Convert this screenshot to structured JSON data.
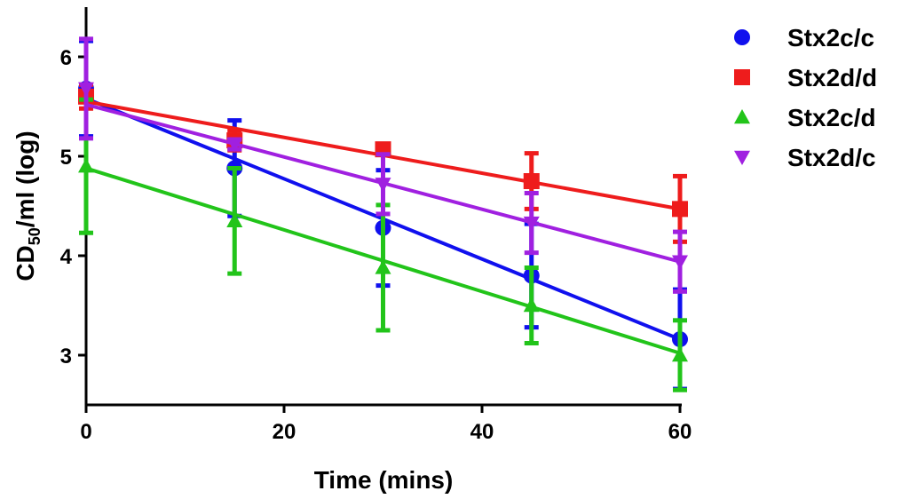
{
  "chart_data": {
    "type": "scatter",
    "title": "",
    "xlabel": "Time (mins)",
    "ylabel": {
      "main": "CD",
      "sub": "50",
      "rest": "/ml (log)"
    },
    "xlim": [
      0,
      60
    ],
    "ylim": [
      2.5,
      6.5
    ],
    "xticks": [
      0,
      20,
      40,
      60
    ],
    "yticks": [
      3,
      4,
      5,
      6
    ],
    "grid": false,
    "legend_position": "top-right",
    "x": [
      0,
      15,
      30,
      45,
      60
    ],
    "series": [
      {
        "name": "Stx2c/c",
        "color": "#1010ee",
        "marker": "circle",
        "values": [
          5.68,
          4.88,
          4.28,
          3.8,
          3.16
        ],
        "errors": [
          0.48,
          0.48,
          0.58,
          0.52,
          0.5
        ],
        "fit": [
          5.58,
          3.16
        ]
      },
      {
        "name": "Stx2d/d",
        "color": "#ee1c1c",
        "marker": "square",
        "values": [
          5.6,
          5.16,
          5.07,
          4.75,
          4.47
        ],
        "errors": [
          0.12,
          0.1,
          0.05,
          0.28,
          0.33
        ],
        "fit": [
          5.55,
          4.47
        ]
      },
      {
        "name": "Stx2c/d",
        "color": "#22c41a",
        "marker": "triangle-up",
        "values": [
          4.9,
          4.35,
          3.88,
          3.5,
          3.0
        ],
        "errors": [
          0.67,
          0.53,
          0.63,
          0.38,
          0.35
        ],
        "fit": [
          4.88,
          3.02
        ]
      },
      {
        "name": "Stx2d/c",
        "color": "#a020e0",
        "marker": "triangle-down",
        "values": [
          5.68,
          5.12,
          4.72,
          4.33,
          3.94
        ],
        "errors": [
          0.5,
          0.05,
          0.3,
          0.3,
          0.3
        ],
        "fit": [
          5.52,
          3.94
        ]
      }
    ]
  }
}
